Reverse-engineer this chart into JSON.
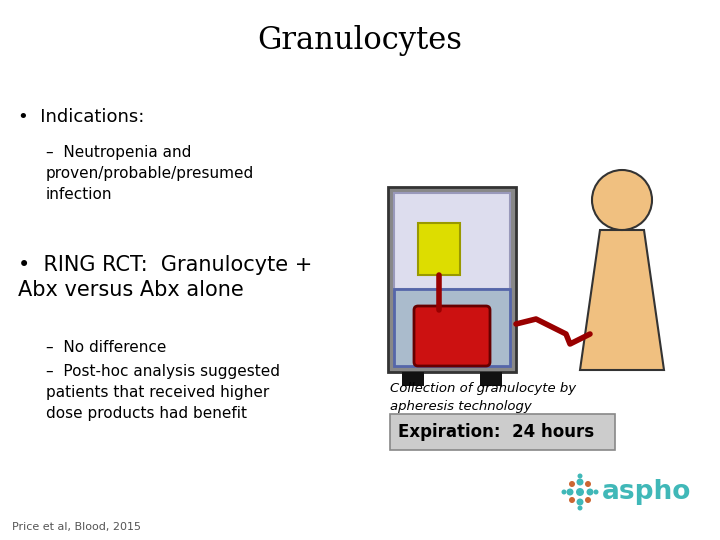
{
  "title": "Granulocytes",
  "title_fontsize": 22,
  "bg_color": "#ffffff",
  "text_color": "#000000",
  "bullet1_header": "Indications:",
  "bullet1_sub": "Neutropenia and\nproven/probable/presumed\ninfection",
  "bullet2_header": "RING RCT:  Granulocyte +\nAbx versus Abx alone",
  "bullet2_sub1": "No difference",
  "bullet2_sub2": "Post-hoc analysis suggested\npatients that received higher\ndose products had benefit",
  "collection_text": "Collection of granulocyte by\napheresis technology",
  "expiration_text": "Expiration:  24 hours",
  "citation": "Price et al, Blood, 2015",
  "expiration_bg": "#cccccc",
  "aspho_color": "#40b8b8",
  "machine_gray": "#888888",
  "machine_frame": "#666699",
  "machine_inner": "#aaaaaa",
  "machine_dark": "#333333",
  "blood_red": "#cc1111",
  "bag_yellow": "#dddd00",
  "patient_skin": "#f0c080",
  "patient_outline": "#333333",
  "tube_dark_red": "#990000",
  "aspho_teal": "#40b8b8",
  "aspho_orange": "#cc6633"
}
